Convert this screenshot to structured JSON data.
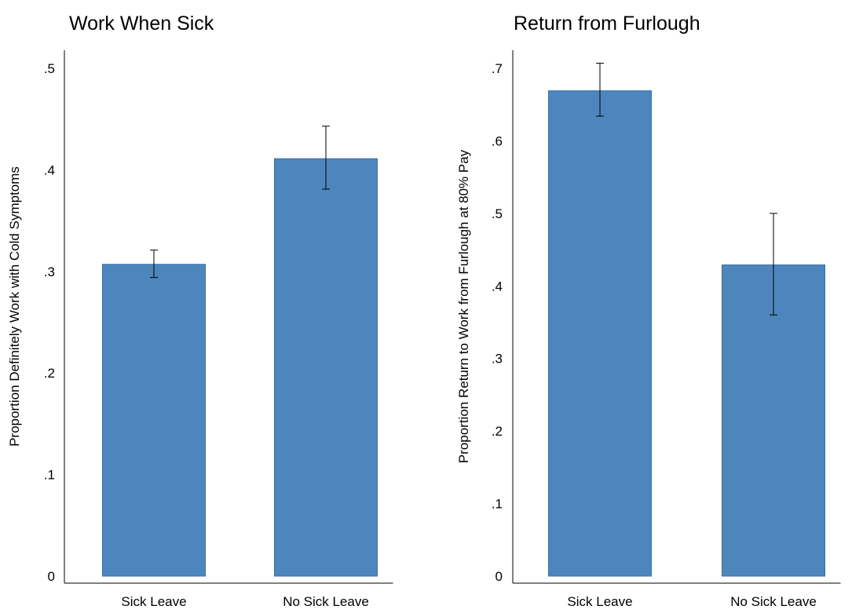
{
  "colors": {
    "bar_fill": "#4c86bd",
    "bar_stroke": "#3b71a6",
    "background": "#ffffff",
    "axis": "#000000"
  },
  "chart_data": [
    {
      "type": "bar",
      "title": "Work When Sick",
      "xlabel": "",
      "ylabel": "Proportion Definitely Work with Cold Symptoms",
      "categories": [
        "Sick Leave",
        "No Sick Leave"
      ],
      "values": [
        0.307,
        0.411
      ],
      "error_low": [
        0.294,
        0.381
      ],
      "error_high": [
        0.321,
        0.443
      ],
      "ylim": [
        0,
        0.5
      ],
      "yticks": [
        0,
        0.1,
        0.2,
        0.3,
        0.4,
        0.5
      ],
      "ytick_labels": [
        "0",
        ".1",
        ".2",
        ".3",
        ".4",
        ".5"
      ],
      "grid": false,
      "legend": "none"
    },
    {
      "type": "bar",
      "title": "Return from Furlough",
      "xlabel": "",
      "ylabel": "Proportion Return to Work from Furlough at 80% Pay",
      "categories": [
        "Sick Leave",
        "No Sick Leave"
      ],
      "values": [
        0.669,
        0.429
      ],
      "error_low": [
        0.634,
        0.36
      ],
      "error_high": [
        0.707,
        0.5
      ],
      "ylim": [
        0,
        0.7
      ],
      "yticks": [
        0,
        0.1,
        0.2,
        0.3,
        0.4,
        0.5,
        0.6,
        0.7
      ],
      "ytick_labels": [
        "0",
        ".1",
        ".2",
        ".3",
        ".4",
        ".5",
        ".6",
        ".7"
      ],
      "grid": false,
      "legend": "none"
    }
  ]
}
